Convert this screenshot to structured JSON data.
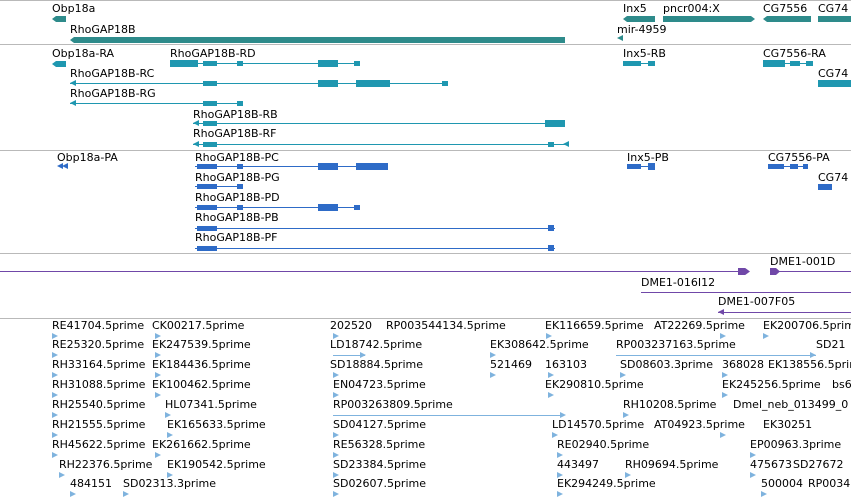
{
  "colors": {
    "gene": "#2e8b8b",
    "rna": "#1f97b0",
    "protein": "#2e6bc7",
    "clone": "#7048a8",
    "est": "#7fb3de",
    "separator": "#b9b9b9"
  },
  "tracks": {
    "genes": {
      "labels": [
        "Obp18a",
        "RhoGAP18B",
        "Inx5",
        "pncr004:X",
        "mir-4959",
        "CG7556",
        "CG74"
      ]
    },
    "transcripts": {
      "labels": [
        "Obp18a-RA",
        "RhoGAP18B-RD",
        "RhoGAP18B-RC",
        "RhoGAP18B-RG",
        "RhoGAP18B-RB",
        "RhoGAP18B-RF",
        "Inx5-RB",
        "CG7556-RA",
        "CG74"
      ]
    },
    "proteins": {
      "labels": [
        "Obp18a-PA",
        "RhoGAP18B-PC",
        "RhoGAP18B-PG",
        "RhoGAP18B-PD",
        "RhoGAP18B-PB",
        "RhoGAP18B-PF",
        "Inx5-PB",
        "CG7556-PA",
        "CG74"
      ]
    },
    "clones": {
      "labels": [
        "DME1-001D",
        "DME1-016I12",
        "DME1-007F05"
      ]
    },
    "ests": {
      "labels": [
        "RE41704.5prime",
        "CK00217.5prime",
        "202520",
        "RP003544134.5prime",
        "EK116659.5prime",
        "AT22269.5prime",
        "EK200706.5prime",
        "RE25320.5prime",
        "EK247539.5prime",
        "LD18742.5prime",
        "EK308642.5prime",
        "RP003237163.5prime",
        "SD21",
        "RH33164.5prime",
        "EK184436.5prime",
        "SD18884.5prime",
        "521469",
        "163103",
        "SD08603.3prime",
        "368028",
        "EK138556.5prime",
        "RH31088.5prime",
        "EK100462.5prime",
        "EN04723.5prime",
        "EK290810.5prime",
        "EK245256.5prime",
        "bs6",
        "RH25540.5prime",
        "HL07341.5prime",
        "RP003263809.5prime",
        "RH10208.5prime",
        "Dmel_neb_013499_0",
        "RH21555.5prime",
        "EK165633.5prime",
        "SD04127.5prime",
        "LD14570.5prime",
        "AT04923.5prime",
        "EK30251",
        "RH45622.5prime",
        "EK261662.5prime",
        "RE56328.5prime",
        "RE02940.5prime",
        "EP00963.3prime",
        "RH22376.5prime",
        "EK190542.5prime",
        "SD23384.5prime",
        "443497",
        "RH09694.5prime",
        "475673",
        "SD27672",
        "484151",
        "SD02313.3prime",
        "SD02607.5prime",
        "EK294249.5prime",
        "500004",
        "RP0034"
      ]
    }
  }
}
